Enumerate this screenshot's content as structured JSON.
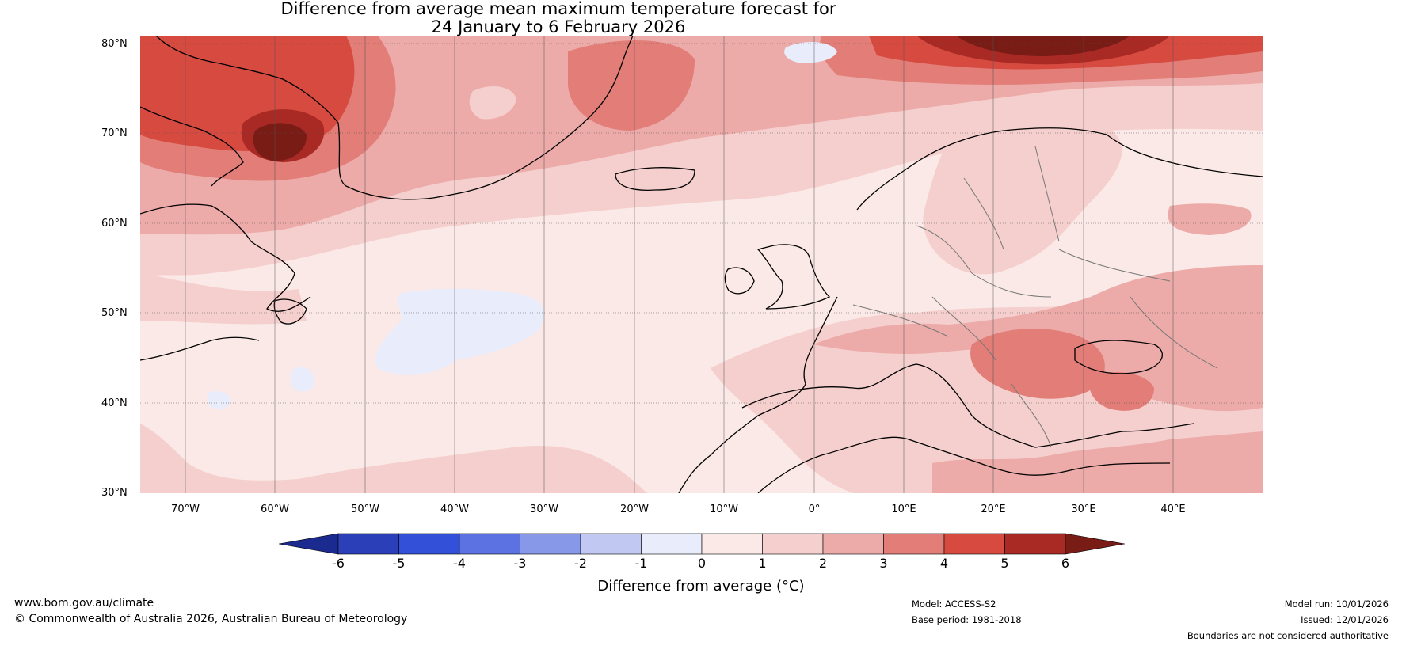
{
  "title": {
    "line1": "Difference from average mean maximum temperature forecast for",
    "line2": "24 January to 6 February 2026"
  },
  "map": {
    "lat_labels": [
      "80°N",
      "70°N",
      "60°N",
      "50°N",
      "40°N",
      "30°N"
    ],
    "lon_labels": [
      "70°W",
      "60°W",
      "50°W",
      "40°W",
      "30°W",
      "20°W",
      "10°W",
      "0°",
      "10°E",
      "20°E",
      "30°E",
      "40°E"
    ],
    "lat_range": [
      30,
      81
    ],
    "lon_range": [
      -75,
      50
    ]
  },
  "colorbar": {
    "ticks": [
      "-6",
      "-5",
      "-4",
      "-3",
      "-2",
      "-1",
      "0",
      "1",
      "2",
      "3",
      "4",
      "5",
      "6"
    ],
    "colors": [
      "#1b2a8f",
      "#2b3fb8",
      "#3350d9",
      "#5c72e3",
      "#8798e8",
      "#c1c9f2",
      "#e8ecfb",
      "#fbe9e7",
      "#f4cfcd",
      "#ecaaa8",
      "#e27d78",
      "#d64a40",
      "#a92a24",
      "#7a1c16"
    ],
    "label": "Difference from average (°C)"
  },
  "footer": {
    "website": "www.bom.gov.au/climate",
    "copyright": "© Commonwealth of Australia 2026, Australian Bureau of Meteorology",
    "model": "Model: ACCESS-S2",
    "base_period": "Base period: 1981-2018",
    "model_run": "Model run: 10/01/2026",
    "issued": "Issued: 12/01/2026",
    "disclaimer": "Boundaries are not considered authoritative"
  }
}
